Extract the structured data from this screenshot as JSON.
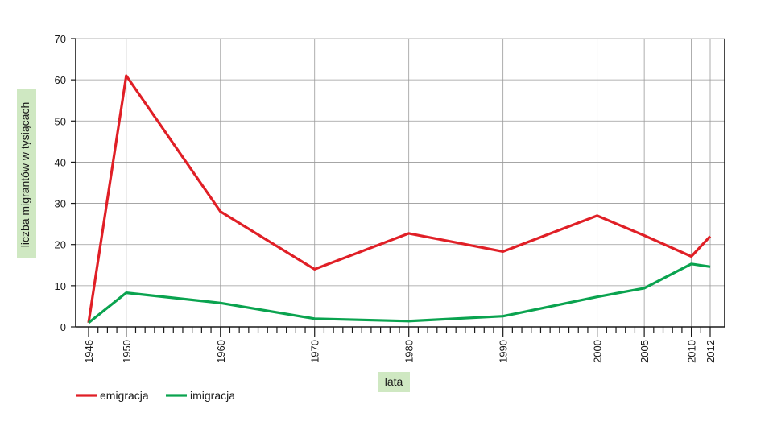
{
  "chart_data": {
    "type": "line",
    "title": "",
    "xlabel": "lata",
    "ylabel": "liczba migrantów w tysiącach",
    "x_ticks": [
      1946,
      1950,
      1960,
      1970,
      1980,
      1990,
      2000,
      2005,
      2010,
      2012
    ],
    "y_ticks": [
      0,
      10,
      20,
      30,
      40,
      50,
      60,
      70
    ],
    "xlim": [
      1946,
      2012
    ],
    "ylim": [
      0,
      70
    ],
    "grid": true,
    "legend_position": "bottom-left",
    "series": [
      {
        "name": "emigracja",
        "color": "#e01f26",
        "x": [
          1946,
          1950,
          1960,
          1970,
          1980,
          1990,
          2000,
          2005,
          2010,
          2012
        ],
        "y": [
          1.0,
          61.0,
          28.0,
          14.0,
          22.7,
          18.3,
          27.0,
          22.2,
          17.1,
          22.0
        ]
      },
      {
        "name": "imigracja",
        "color": "#0aa34f",
        "x": [
          1946,
          1950,
          1960,
          1970,
          1980,
          1990,
          2000,
          2005,
          2010,
          2012
        ],
        "y": [
          1.0,
          8.3,
          5.8,
          2.0,
          1.4,
          2.6,
          7.3,
          9.4,
          15.3,
          14.6
        ]
      }
    ]
  },
  "colors": {
    "label_background": "#cfe8c2",
    "grid": "#9a9a9a",
    "axis": "#1a1a1a"
  }
}
